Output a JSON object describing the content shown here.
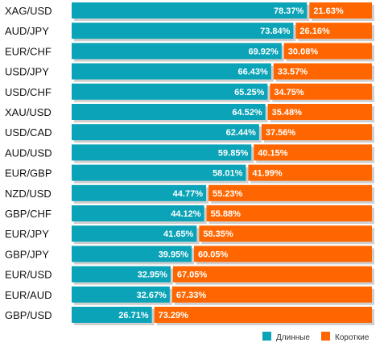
{
  "chart_data": {
    "type": "bar",
    "stacked": true,
    "orientation": "horizontal",
    "categories": [
      "XAG/USD",
      "AUD/JPY",
      "EUR/CHF",
      "USD/JPY",
      "USD/CHF",
      "XAU/USD",
      "USD/CAD",
      "AUD/USD",
      "EUR/GBP",
      "NZD/USD",
      "GBP/CHF",
      "EUR/JPY",
      "GBP/JPY",
      "EUR/USD",
      "EUR/AUD",
      "GBP/USD"
    ],
    "series": [
      {
        "name": "Длинные",
        "color": "#0aa3b7",
        "values": [
          78.37,
          73.84,
          69.92,
          66.43,
          65.25,
          64.52,
          62.44,
          59.85,
          58.01,
          44.77,
          44.12,
          41.65,
          39.95,
          32.95,
          32.67,
          26.71
        ],
        "labels": [
          "78.37%",
          "73.84%",
          "69.92%",
          "66.43%",
          "65.25%",
          "64.52%",
          "62.44%",
          "59.85%",
          "58.01%",
          "44.77%",
          "44.12%",
          "41.65%",
          "39.95%",
          "32.95%",
          "32.67%",
          "26.71%"
        ]
      },
      {
        "name": "Короткие",
        "color": "#ff6600",
        "values": [
          21.63,
          26.16,
          30.08,
          33.57,
          34.75,
          35.48,
          37.56,
          40.15,
          41.99,
          55.23,
          55.88,
          58.35,
          60.05,
          67.05,
          67.33,
          73.29
        ],
        "labels": [
          "21.63%",
          "26.16%",
          "30.08%",
          "33.57%",
          "34.75%",
          "35.48%",
          "37.56%",
          "40.15%",
          "41.99%",
          "55.23%",
          "55.88%",
          "58.35%",
          "60.05%",
          "67.05%",
          "67.33%",
          "73.29%"
        ]
      }
    ],
    "xlim": [
      0,
      100
    ],
    "grid": false,
    "legend": "bottom-right"
  },
  "legend": {
    "long_label": "Длинные",
    "short_label": "Короткие"
  }
}
